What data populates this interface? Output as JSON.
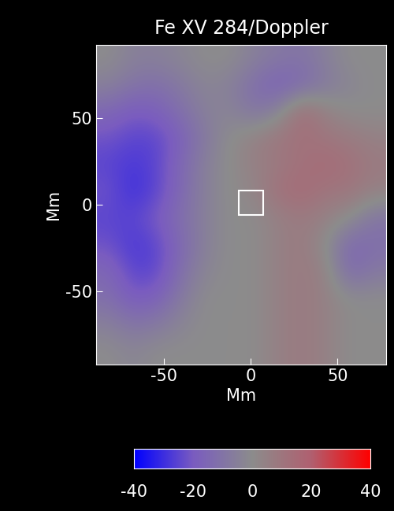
{
  "chart_data": {
    "type": "heatmap",
    "title": "Fe XV 284/Doppler",
    "xlabel": "Mm",
    "ylabel": "Mm",
    "xlim": [
      -89,
      78
    ],
    "ylim": [
      -92,
      92
    ],
    "xticks": [
      -50,
      0,
      50
    ],
    "yticks": [
      -50,
      0,
      50
    ],
    "cells": [
      [
        0,
        -5,
        -5,
        -3,
        0,
        0,
        -5,
        -8,
        -10,
        -5,
        0,
        0
      ],
      [
        -5,
        -10,
        -12,
        -8,
        -3,
        -5,
        -12,
        -18,
        -15,
        -8,
        -3,
        0
      ],
      [
        -15,
        -20,
        -18,
        -12,
        -5,
        -3,
        -10,
        -5,
        15,
        5,
        0,
        0
      ],
      [
        -22,
        -25,
        -25,
        -18,
        -8,
        0,
        5,
        10,
        12,
        10,
        8,
        5
      ],
      [
        -25,
        -28,
        -25,
        -15,
        -5,
        0,
        5,
        8,
        12,
        15,
        12,
        8
      ],
      [
        -22,
        -30,
        -25,
        -15,
        -5,
        0,
        3,
        12,
        15,
        10,
        10,
        5
      ],
      [
        -25,
        -25,
        -20,
        -12,
        -5,
        0,
        0,
        5,
        8,
        5,
        0,
        -10
      ],
      [
        -22,
        -28,
        -25,
        -15,
        -5,
        0,
        0,
        5,
        8,
        0,
        -15,
        -12
      ],
      [
        -15,
        -25,
        -25,
        -12,
        -3,
        0,
        0,
        5,
        8,
        5,
        -15,
        -8
      ],
      [
        -12,
        -20,
        -18,
        -8,
        0,
        0,
        0,
        5,
        8,
        5,
        0,
        0
      ],
      [
        -5,
        -10,
        -8,
        -3,
        0,
        0,
        0,
        5,
        8,
        5,
        0,
        0
      ],
      [
        0,
        -3,
        0,
        0,
        0,
        0,
        0,
        5,
        8,
        5,
        0,
        0
      ]
    ],
    "colorbar": {
      "range": [
        -40,
        40
      ],
      "ticks": [
        -40,
        -20,
        0,
        20,
        40
      ]
    },
    "box": {
      "x": [
        -7,
        7
      ],
      "y": [
        -6,
        8
      ]
    }
  }
}
